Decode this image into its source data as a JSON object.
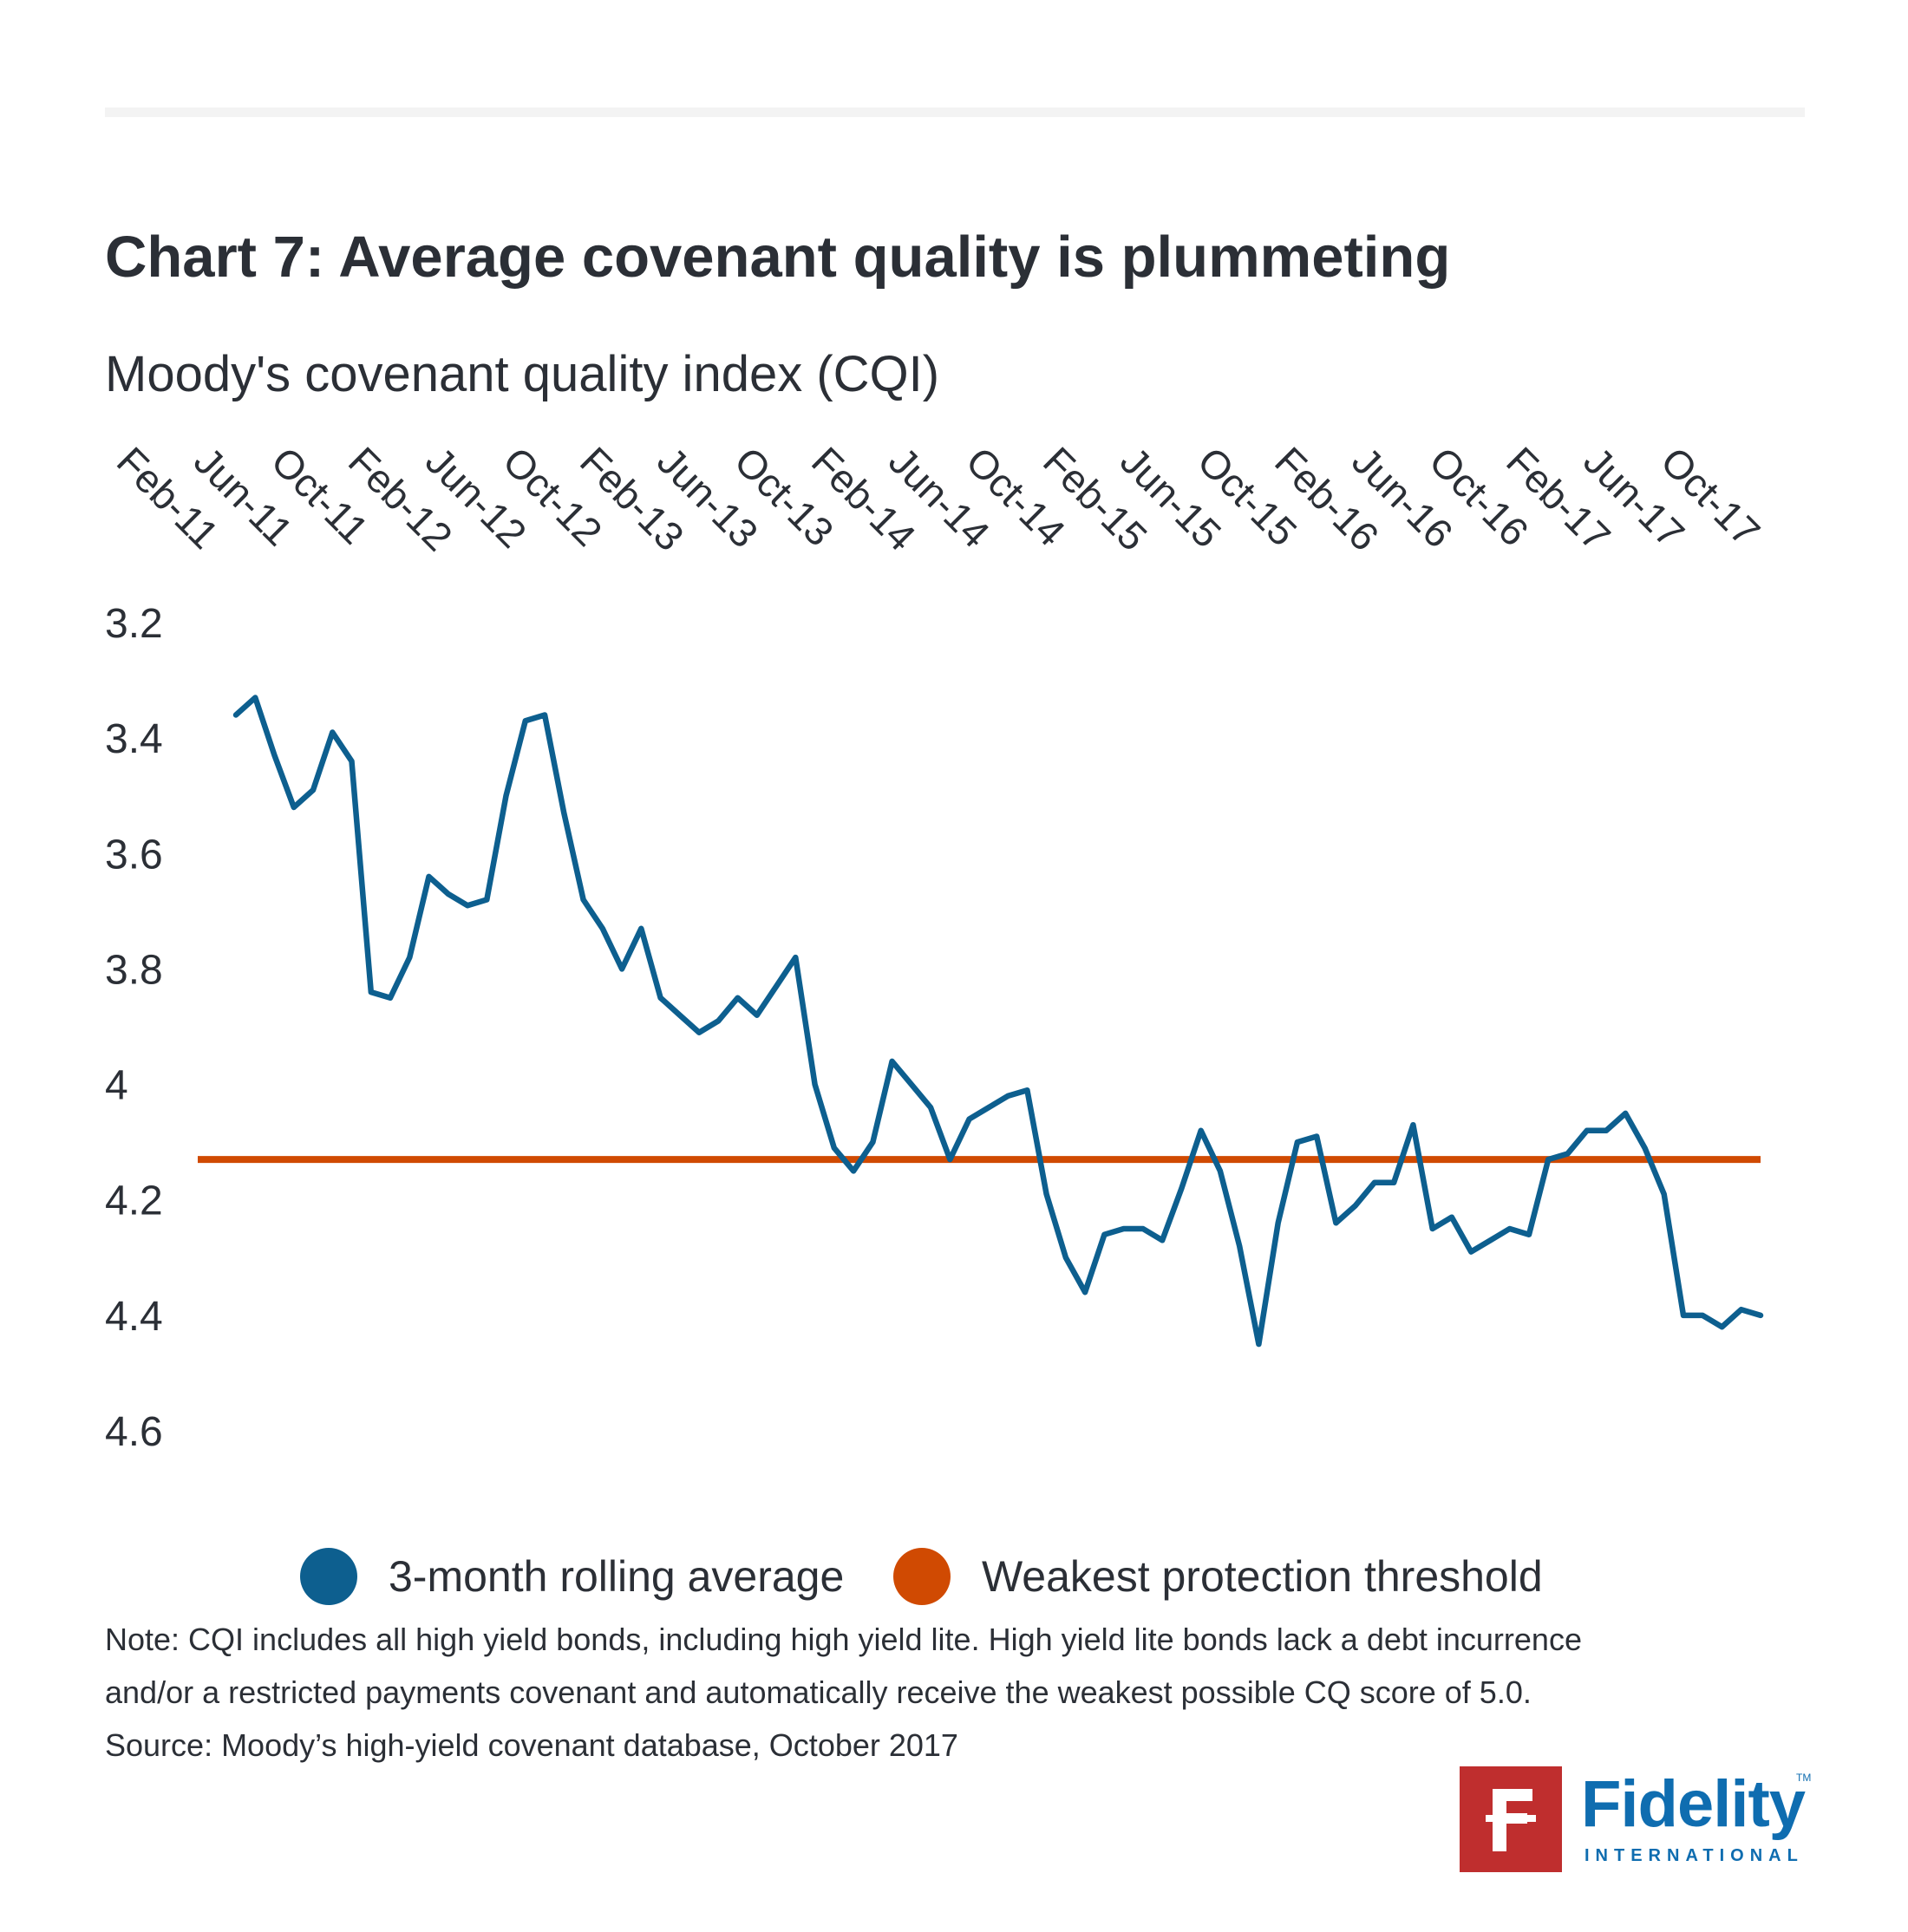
{
  "title": "Chart 7: Average covenant quality is plummeting",
  "subtitle": "Moody's covenant quality index (CQI)",
  "chart_data": {
    "type": "line",
    "y_axis": {
      "min": 3.2,
      "max": 4.6,
      "inverted": true,
      "ticks": [
        "3.2",
        "3.4",
        "3.6",
        "3.8",
        "4",
        "4.2",
        "4.4",
        "4.6"
      ]
    },
    "x_tick_labels": [
      "Feb-11",
      "Jun-11",
      "Oct-11",
      "Feb-12",
      "Jun-12",
      "Oct-12",
      "Feb-13",
      "Jun-13",
      "Oct-13",
      "Feb-14",
      "Jun-14",
      "Oct-14",
      "Feb-15",
      "Jun-15",
      "Oct-15",
      "Feb-16",
      "Jun-16",
      "Oct-16",
      "Feb-17",
      "Jun-17",
      "Oct-17"
    ],
    "x_label_placement": "top",
    "legend_placement": "bottom",
    "series": [
      {
        "name": "3-month rolling average",
        "color": "#0d5f8f",
        "start": "Feb-11",
        "frequency": "monthly",
        "values": [
          3.36,
          3.33,
          3.43,
          3.52,
          3.49,
          3.39,
          3.44,
          3.84,
          3.85,
          3.78,
          3.64,
          3.67,
          3.69,
          3.68,
          3.5,
          3.37,
          3.36,
          3.53,
          3.68,
          3.73,
          3.8,
          3.73,
          3.85,
          3.88,
          3.91,
          3.89,
          3.85,
          3.88,
          3.83,
          3.78,
          4.0,
          4.11,
          4.15,
          4.1,
          3.96,
          4.0,
          4.04,
          4.13,
          4.06,
          4.04,
          4.02,
          4.01,
          4.19,
          4.3,
          4.36,
          4.26,
          4.25,
          4.25,
          4.27,
          4.18,
          4.08,
          4.15,
          4.28,
          4.45,
          4.24,
          4.1,
          4.09,
          4.24,
          4.21,
          4.17,
          4.17,
          4.07,
          4.25,
          4.23,
          4.29,
          4.27,
          4.25,
          4.26,
          4.13,
          4.12,
          4.08,
          4.08,
          4.05,
          4.11,
          4.19,
          4.4,
          4.4,
          4.42,
          4.39,
          4.4
        ]
      },
      {
        "name": "Weakest protection threshold",
        "color": "#d04a02",
        "values": [
          4.13,
          4.13
        ]
      }
    ]
  },
  "notes": {
    "line1": "Note: CQI includes all high yield bonds, including high yield lite. High yield lite bonds lack a debt incurrence",
    "line2": "and/or a restricted payments covenant and automatically receive the weakest possible CQ score of 5.0.",
    "source": "Source: Moody’s high-yield covenant database, October 2017"
  },
  "logo": {
    "mark": "F",
    "name": "Fidelity",
    "sub": "INTERNATIONAL",
    "tm": "TM"
  }
}
